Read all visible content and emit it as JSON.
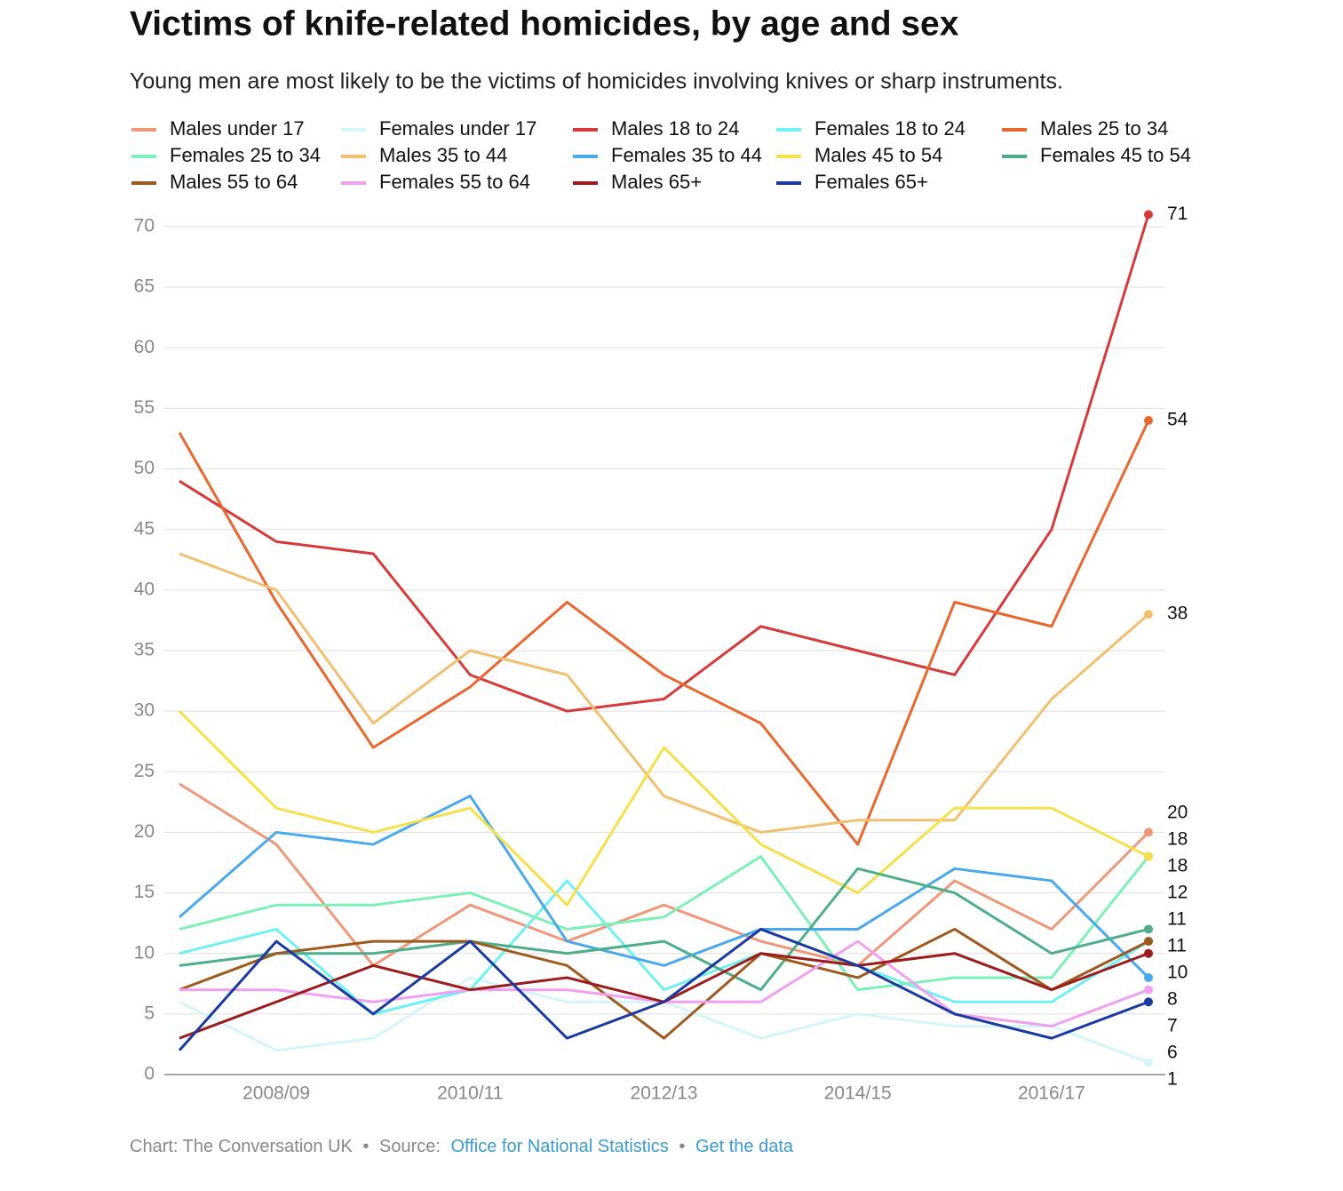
{
  "chart_data": {
    "type": "line",
    "title": "Victims of knife-related homicides, by age and sex",
    "subtitle": "Young men are most likely to be the victims of homicides involving knives or sharp instruments.",
    "categories": [
      null,
      "2008/09",
      null,
      "2010/11",
      null,
      "2012/13",
      null,
      "2014/15",
      null,
      "2016/17",
      null
    ],
    "ylim": [
      0,
      70
    ],
    "yticks": [
      0,
      5,
      10,
      15,
      20,
      25,
      30,
      35,
      40,
      45,
      50,
      55,
      60,
      65,
      70
    ],
    "grid": true,
    "series": [
      {
        "name": "Males under 17",
        "color": "#f0977a",
        "values": [
          24,
          19,
          9,
          14,
          11,
          14,
          11,
          9,
          16,
          12,
          20
        ]
      },
      {
        "name": "Females under 17",
        "color": "#d4f6f8",
        "values": [
          6,
          2,
          3,
          8,
          6,
          6,
          3,
          5,
          4,
          4,
          1
        ]
      },
      {
        "name": "Males 18 to 24",
        "color": "#d63b3b",
        "values": [
          49,
          44,
          43,
          33,
          30,
          31,
          37,
          35,
          33,
          45,
          71
        ]
      },
      {
        "name": "Females 18 to 24",
        "color": "#6ff0f2",
        "values": [
          10,
          12,
          5,
          7,
          16,
          7,
          10,
          9,
          6,
          6,
          11
        ]
      },
      {
        "name": "Males 25 to 34",
        "color": "#e8672f",
        "values": [
          53,
          39,
          27,
          32,
          39,
          33,
          29,
          19,
          39,
          37,
          54
        ]
      },
      {
        "name": "Females 25 to 34",
        "color": "#7df0b8",
        "values": [
          12,
          14,
          14,
          15,
          12,
          13,
          18,
          7,
          8,
          8,
          18
        ]
      },
      {
        "name": "Males 35 to 44",
        "color": "#f0c070",
        "values": [
          43,
          40,
          29,
          35,
          33,
          23,
          20,
          21,
          21,
          31,
          38
        ]
      },
      {
        "name": "Females 35 to 44",
        "color": "#4aa8ec",
        "values": [
          13,
          20,
          19,
          23,
          11,
          9,
          12,
          12,
          17,
          16,
          8
        ]
      },
      {
        "name": "Males 45 to 54",
        "color": "#f5e04a",
        "values": [
          30,
          22,
          20,
          22,
          14,
          27,
          19,
          15,
          22,
          22,
          18
        ]
      },
      {
        "name": "Females 45 to 54",
        "color": "#4fae8a",
        "values": [
          9,
          10,
          10,
          11,
          10,
          11,
          7,
          17,
          15,
          10,
          12
        ]
      },
      {
        "name": "Males 55 to 64",
        "color": "#9e5a1e",
        "values": [
          7,
          10,
          11,
          11,
          9,
          3,
          10,
          8,
          12,
          7,
          11
        ]
      },
      {
        "name": "Females 55 to 64",
        "color": "#f0a0f0",
        "values": [
          7,
          7,
          6,
          7,
          7,
          6,
          6,
          11,
          5,
          4,
          7
        ]
      },
      {
        "name": "Males 65+",
        "color": "#9b1c1c",
        "values": [
          3,
          6,
          9,
          7,
          8,
          6,
          10,
          9,
          10,
          7,
          10
        ]
      },
      {
        "name": "Females 65+",
        "color": "#1a3aa0",
        "values": [
          2,
          11,
          5,
          11,
          3,
          6,
          12,
          9,
          5,
          3,
          6
        ]
      }
    ],
    "footer": {
      "credit": "Chart: The Conversation UK",
      "separator": "•",
      "source_label": "Source:",
      "source": "Office for National Statistics",
      "data_link": "Get the data"
    }
  }
}
